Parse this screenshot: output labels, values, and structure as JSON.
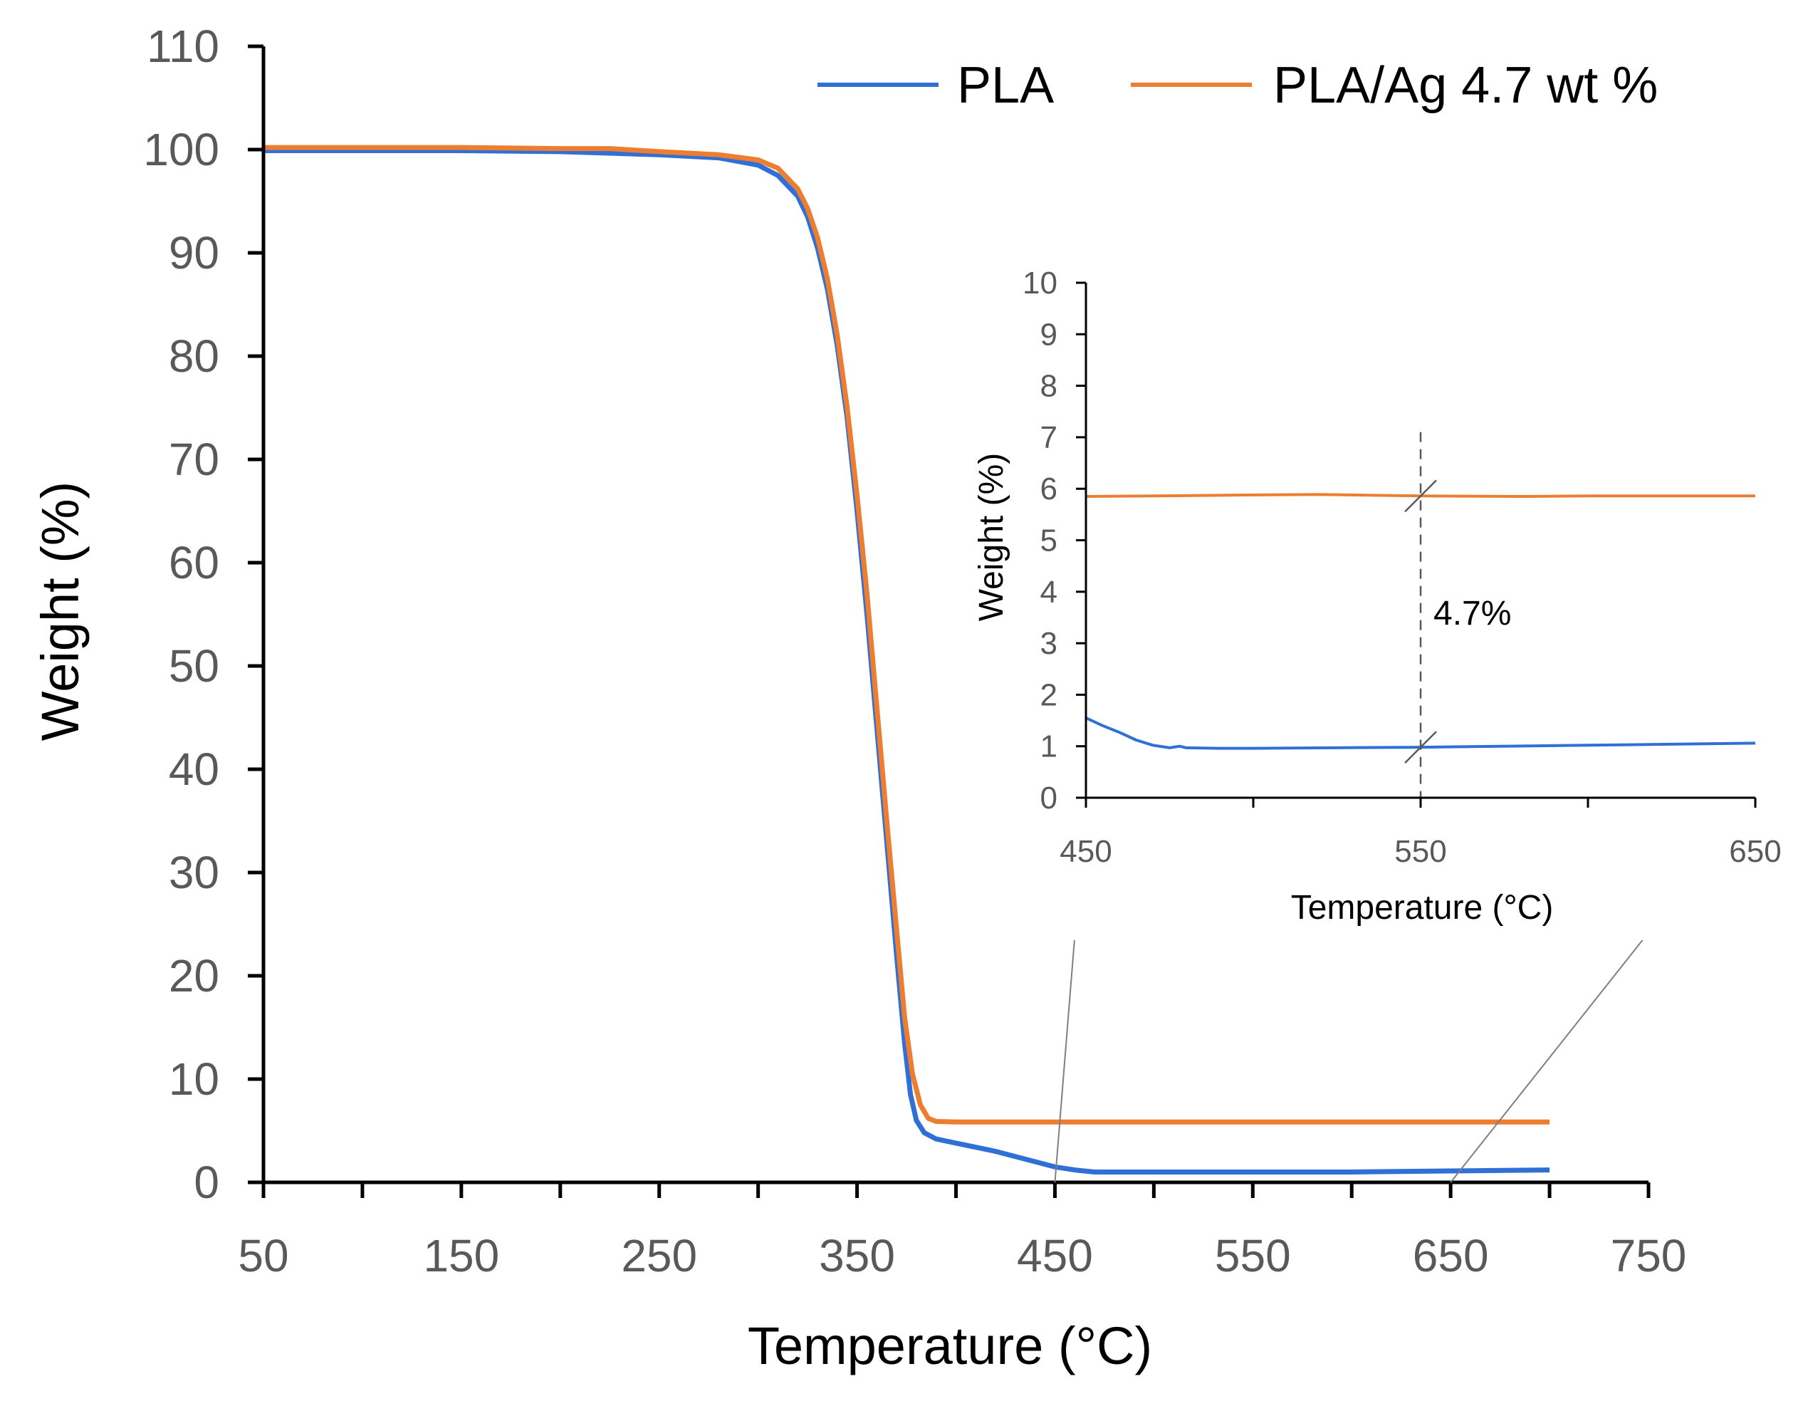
{
  "chart_data": [
    {
      "type": "line",
      "xlabel": "Temperature (°C)",
      "ylabel": "Weight (%)",
      "xlim": [
        50,
        750
      ],
      "ylim": [
        0,
        110
      ],
      "xticks": [
        "50",
        "150",
        "250",
        "350",
        "450",
        "550",
        "650",
        "750"
      ],
      "yticks": [
        "0",
        "10",
        "20",
        "30",
        "40",
        "50",
        "60",
        "70",
        "80",
        "90",
        "100",
        "110"
      ],
      "legend_position": "top-right",
      "series": [
        {
          "name": "PLA",
          "color": "#2f6fd6",
          "points": [
            [
              50,
              99.9
            ],
            [
              100,
              99.9
            ],
            [
              150,
              99.9
            ],
            [
              200,
              99.8
            ],
            [
              250,
              99.5
            ],
            [
              280,
              99.2
            ],
            [
              300,
              98.5
            ],
            [
              310,
              97.5
            ],
            [
              320,
              95.5
            ],
            [
              325,
              93.5
            ],
            [
              330,
              90.5
            ],
            [
              335,
              86.5
            ],
            [
              340,
              81
            ],
            [
              345,
              74
            ],
            [
              350,
              65
            ],
            [
              355,
              55
            ],
            [
              360,
              44
            ],
            [
              365,
              33
            ],
            [
              370,
              22
            ],
            [
              374,
              13.5
            ],
            [
              377,
              8.5
            ],
            [
              380,
              6
            ],
            [
              384,
              4.8
            ],
            [
              390,
              4.2
            ],
            [
              400,
              3.8
            ],
            [
              410,
              3.4
            ],
            [
              420,
              3.0
            ],
            [
              430,
              2.5
            ],
            [
              440,
              2.0
            ],
            [
              450,
              1.5
            ],
            [
              460,
              1.2
            ],
            [
              470,
              1.0
            ],
            [
              480,
              1.0
            ],
            [
              500,
              1.0
            ],
            [
              550,
              1.0
            ],
            [
              600,
              1.0
            ],
            [
              650,
              1.1
            ],
            [
              700,
              1.2
            ]
          ]
        },
        {
          "name": "PLA/Ag 4.7 wt %",
          "color": "#ed7d31",
          "points": [
            [
              50,
              100.2
            ],
            [
              100,
              100.2
            ],
            [
              150,
              100.2
            ],
            [
              200,
              100.1
            ],
            [
              225,
              100.1
            ],
            [
              250,
              99.8
            ],
            [
              280,
              99.5
            ],
            [
              300,
              99
            ],
            [
              310,
              98.2
            ],
            [
              320,
              96.2
            ],
            [
              325,
              94.3
            ],
            [
              330,
              91.5
            ],
            [
              335,
              87.5
            ],
            [
              340,
              82
            ],
            [
              345,
              75
            ],
            [
              350,
              66.5
            ],
            [
              355,
              57
            ],
            [
              360,
              46
            ],
            [
              365,
              35
            ],
            [
              370,
              24.5
            ],
            [
              374,
              16
            ],
            [
              378,
              10.5
            ],
            [
              382,
              7.5
            ],
            [
              386,
              6.2
            ],
            [
              390,
              5.9
            ],
            [
              400,
              5.85
            ],
            [
              450,
              5.85
            ],
            [
              500,
              5.85
            ],
            [
              550,
              5.85
            ],
            [
              600,
              5.85
            ],
            [
              650,
              5.85
            ],
            [
              700,
              5.85
            ]
          ]
        }
      ]
    },
    {
      "type": "line",
      "xlabel": "Temperature (°C)",
      "ylabel": "Weight (%)",
      "xlim": [
        450,
        650
      ],
      "ylim": [
        0,
        10
      ],
      "xticks": [
        "450",
        "550",
        "650"
      ],
      "yticks": [
        "0",
        "1",
        "2",
        "3",
        "4",
        "5",
        "6",
        "7",
        "8",
        "9",
        "10"
      ],
      "series": [
        {
          "name": "PLA",
          "color": "#2f6fd6",
          "points": [
            [
              450,
              1.55
            ],
            [
              455,
              1.4
            ],
            [
              460,
              1.27
            ],
            [
              465,
              1.12
            ],
            [
              470,
              1.02
            ],
            [
              475,
              0.97
            ],
            [
              478,
              1.0
            ],
            [
              480,
              0.97
            ],
            [
              490,
              0.96
            ],
            [
              500,
              0.96
            ],
            [
              550,
              0.98
            ],
            [
              600,
              1.02
            ],
            [
              650,
              1.06
            ]
          ]
        },
        {
          "name": "PLA/Ag 4.7 wt %",
          "color": "#ed7d31",
          "points": [
            [
              450,
              5.85
            ],
            [
              470,
              5.86
            ],
            [
              500,
              5.88
            ],
            [
              520,
              5.89
            ],
            [
              550,
              5.86
            ],
            [
              580,
              5.85
            ],
            [
              600,
              5.86
            ],
            [
              650,
              5.86
            ]
          ]
        }
      ],
      "annotation": {
        "label": "4.7%",
        "x": 550,
        "y_from": 0.98,
        "y_to": 5.86
      }
    }
  ]
}
